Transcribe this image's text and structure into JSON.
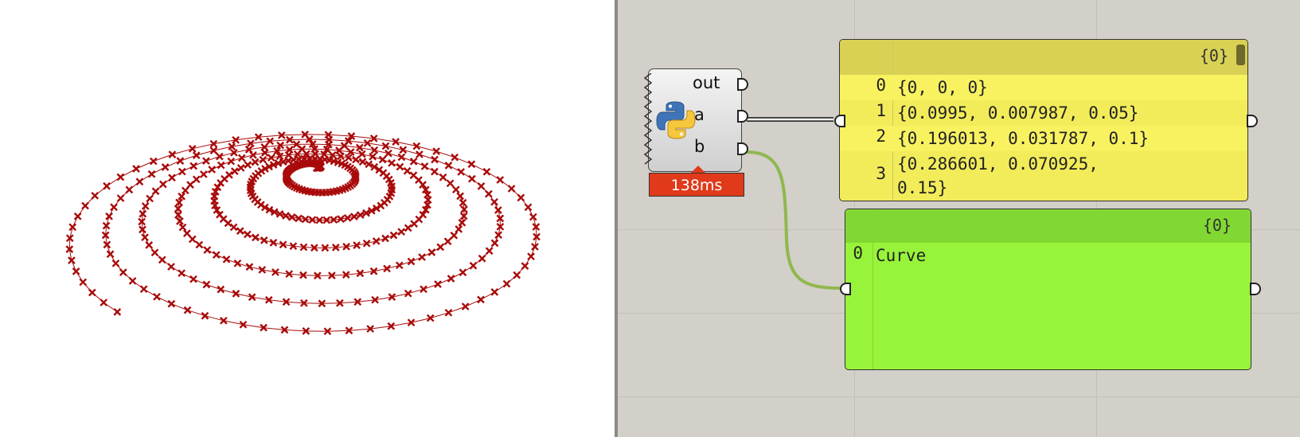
{
  "python_component": {
    "outputs": [
      "out",
      "a",
      "b"
    ],
    "timer": "138ms",
    "icon": "python-logo-icon"
  },
  "points_panel": {
    "tag": "{0}",
    "rows": [
      {
        "index": "0",
        "value": "{0, 0, 0}"
      },
      {
        "index": "1",
        "value": "{0.0995, 0.007987, 0.05}"
      },
      {
        "index": "2",
        "value": "{0.196013, 0.031787, 0.1}"
      },
      {
        "index": "3",
        "value": "{0.286601, 0.070925,\n0.15}"
      }
    ]
  },
  "curve_panel": {
    "tag": "{0}",
    "rows": [
      {
        "index": "0",
        "value": "Curve"
      }
    ]
  },
  "colors": {
    "point_color": "#a80a0a",
    "panel_yellow": "#f2ec5a",
    "panel_green": "#98f43a",
    "canvas_bg": "#d3cfc9"
  }
}
